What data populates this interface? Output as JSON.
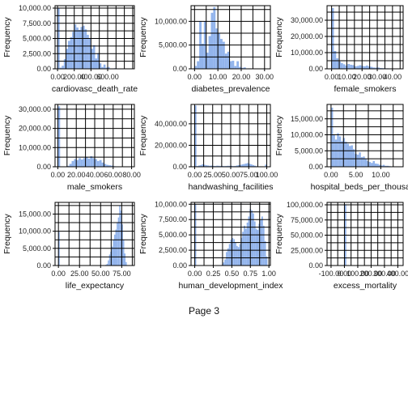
{
  "page": {
    "footer": "Page 3"
  },
  "chart_data": [
    {
      "type": "bar",
      "xlabel": "cardiovasc_death_rate",
      "ylabel": "Frequency",
      "xlim": [
        -30,
        920
      ],
      "ylim": [
        0,
        10400
      ],
      "xticks": [
        0,
        200,
        400,
        600
      ],
      "xtick_labels": [
        "0.00",
        "200.00",
        "400.00",
        "600.00"
      ],
      "yticks": [
        0,
        2500,
        5000,
        7500,
        10000
      ],
      "ytick_labels": [
        "0.00",
        "2,500.00",
        "5,000.00",
        "7,500.00",
        "10,000.00"
      ],
      "bin_start": 0,
      "bin_width": 25,
      "values": [
        10000,
        200,
        500,
        1600,
        3300,
        4600,
        5200,
        6100,
        7300,
        6800,
        6400,
        6900,
        7100,
        6500,
        5600,
        5000,
        3300,
        3900,
        1700,
        2600,
        900,
        300,
        700,
        200,
        300,
        0,
        0,
        100,
        0,
        0,
        0,
        0,
        0,
        0,
        50
      ]
    },
    {
      "type": "bar",
      "xlabel": "diabetes_prevalence",
      "ylabel": "Frequency",
      "xlim": [
        -1.5,
        32.5
      ],
      "ylim": [
        0,
        13300
      ],
      "xticks": [
        0,
        10,
        20,
        30
      ],
      "xtick_labels": [
        "0.00",
        "10.00",
        "20.00",
        "30.00"
      ],
      "yticks": [
        0,
        5000,
        10000
      ],
      "ytick_labels": [
        "0.00",
        "5,000.00",
        "10,000.00"
      ],
      "bin_start": 0,
      "bin_width": 1,
      "values": [
        600,
        1600,
        10000,
        5300,
        10000,
        3400,
        6900,
        11800,
        13000,
        8500,
        7500,
        6300,
        5700,
        3200,
        3600,
        1600,
        1700,
        600,
        1600,
        400,
        200,
        300,
        0,
        100,
        0,
        0,
        0,
        0,
        0,
        50
      ]
    },
    {
      "type": "bar",
      "xlabel": "female_smokers",
      "ylabel": "Frequency",
      "xlim": [
        -3,
        47
      ],
      "ylim": [
        0,
        39000
      ],
      "xticks": [
        0,
        10,
        20,
        30,
        40
      ],
      "xtick_labels": [
        "0.00",
        "10.00",
        "20.00",
        "30.00",
        "40.00"
      ],
      "yticks": [
        0,
        10000,
        20000,
        30000
      ],
      "ytick_labels": [
        "0.00",
        "10,000.00",
        "20,000.00",
        "30,000.00"
      ],
      "bin_start": 0,
      "bin_width": 1.5,
      "values": [
        37500,
        11000,
        6500,
        4500,
        3500,
        2800,
        2000,
        3000,
        2500,
        2300,
        1500,
        1800,
        2200,
        1800,
        1600,
        2000,
        1500,
        1200,
        800,
        700,
        800,
        500,
        400,
        300,
        300,
        200,
        200,
        100,
        100,
        100
      ]
    },
    {
      "type": "bar",
      "xlabel": "male_smokers",
      "ylabel": "Frequency",
      "xlim": [
        -3,
        83
      ],
      "ylim": [
        0,
        32500
      ],
      "xticks": [
        0,
        20,
        40,
        60,
        80
      ],
      "xtick_labels": [
        "0.00",
        "20.00",
        "40.00",
        "60.00",
        "80.00"
      ],
      "yticks": [
        0,
        10000,
        20000,
        30000
      ],
      "ytick_labels": [
        "0.00",
        "10,000.00",
        "20,000.00",
        "30,000.00"
      ],
      "bin_start": 0,
      "bin_width": 2.5,
      "values": [
        31500,
        0,
        0,
        200,
        500,
        1500,
        3000,
        4000,
        3500,
        4500,
        3800,
        4500,
        5000,
        4200,
        5500,
        4500,
        4000,
        3000,
        3500,
        2200,
        1500,
        1000,
        800,
        600,
        300,
        200,
        100,
        100,
        100,
        50
      ]
    },
    {
      "type": "bar",
      "xlabel": "handwashing_facilities",
      "ylabel": "Frequency",
      "xlim": [
        -5,
        105
      ],
      "ylim": [
        0,
        58000
      ],
      "xticks": [
        0,
        25,
        50,
        75,
        100
      ],
      "xtick_labels": [
        "0.00",
        "25.00",
        "50.00",
        "75.00",
        "100.00"
      ],
      "yticks": [
        0,
        20000,
        40000
      ],
      "ytick_labels": [
        "0.00",
        "20,000.00",
        "40,000.00"
      ],
      "bin_start": 0,
      "bin_width": 2.5,
      "values": [
        57000,
        600,
        1200,
        1600,
        2400,
        1800,
        1400,
        1200,
        900,
        1100,
        800,
        700,
        1000,
        900,
        700,
        800,
        600,
        700,
        900,
        800,
        900,
        600,
        700,
        1200,
        1500,
        1800,
        2200,
        2600,
        3000,
        3400,
        2800,
        2200,
        1600,
        1000,
        500,
        200,
        100,
        100,
        0,
        2000
      ]
    },
    {
      "type": "bar",
      "xlabel": "hospital_beds_per_thousand",
      "ylabel": "Frequency",
      "xlim": [
        -0.8,
        14.5
      ],
      "ylim": [
        0,
        19500
      ],
      "xticks": [
        0,
        5,
        10
      ],
      "xtick_labels": [
        "0.00",
        "5.00",
        "10.00"
      ],
      "yticks": [
        0,
        5000,
        10000,
        15000
      ],
      "ytick_labels": [
        "0.00",
        "5,000.00",
        "10,000.00",
        "15,000.00"
      ],
      "bin_start": 0,
      "bin_width": 0.4,
      "values": [
        18500,
        10000,
        8500,
        10500,
        9500,
        8000,
        9000,
        7800,
        7200,
        6500,
        6700,
        5500,
        4000,
        3800,
        4500,
        3000,
        3200,
        2500,
        1800,
        1500,
        1200,
        1800,
        1000,
        900,
        600,
        400,
        600,
        300,
        300,
        200,
        100,
        100,
        100,
        50
      ]
    },
    {
      "type": "bar",
      "xlabel": "life_expectancy",
      "ylabel": "Frequency",
      "xlim": [
        -4,
        90
      ],
      "ylim": [
        0,
        18400
      ],
      "xticks": [
        0,
        25,
        50,
        75
      ],
      "xtick_labels": [
        "0.00",
        "25.00",
        "50.00",
        "75.00"
      ],
      "yticks": [
        0,
        5000,
        10000,
        15000
      ],
      "ytick_labels": [
        "0.00",
        "5,000.00",
        "10,000.00",
        "15,000.00"
      ],
      "bin_start": 0,
      "bin_width": 1.5,
      "values": [
        9800,
        0,
        0,
        0,
        0,
        0,
        0,
        0,
        0,
        0,
        0,
        0,
        0,
        0,
        0,
        0,
        0,
        0,
        0,
        0,
        0,
        0,
        0,
        0,
        0,
        0,
        0,
        0,
        0,
        0,
        0,
        0,
        0,
        0,
        0,
        0,
        0,
        200,
        500,
        1500,
        3200,
        4000,
        5500,
        7500,
        9000,
        10500,
        12500,
        14000,
        17500,
        16000,
        12000,
        7500,
        3500,
        1000
      ]
    },
    {
      "type": "bar",
      "xlabel": "human_development_index",
      "ylabel": "Frequency",
      "xlim": [
        -0.05,
        1.02
      ],
      "ylim": [
        0,
        10300
      ],
      "xticks": [
        0,
        0.25,
        0.5,
        0.75,
        1.0
      ],
      "xtick_labels": [
        "0.00",
        "0.25",
        "0.50",
        "0.75",
        "1.00"
      ],
      "yticks": [
        0,
        2500,
        5000,
        7500,
        10000
      ],
      "ytick_labels": [
        "0.00",
        "2,500.00",
        "5,000.00",
        "7,500.00",
        "10,000.00"
      ],
      "bin_start": 0,
      "bin_width": 0.02,
      "values": [
        10000,
        0,
        0,
        0,
        0,
        0,
        0,
        0,
        0,
        0,
        0,
        0,
        0,
        0,
        0,
        0,
        0,
        0,
        100,
        500,
        1000,
        2200,
        2800,
        3500,
        4200,
        4500,
        4300,
        3800,
        3200,
        3000,
        3500,
        4500,
        5500,
        6500,
        6000,
        7000,
        8000,
        9200,
        9000,
        8500,
        7200,
        6000,
        5800,
        6800,
        7500,
        8000,
        6500,
        4000,
        1500
      ]
    },
    {
      "type": "bar",
      "xlabel": "excess_mortality",
      "ylabel": "Frequency",
      "xlim": [
        -130,
        440
      ],
      "ylim": [
        0,
        104000
      ],
      "xticks": [
        -100,
        0,
        100,
        200,
        300,
        400
      ],
      "xtick_labels": [
        "-100.00",
        "0.00",
        "100.00",
        "200.00",
        "300.00",
        "400.00"
      ],
      "yticks": [
        0,
        25000,
        50000,
        75000,
        100000
      ],
      "ytick_labels": [
        "0.00",
        "25,000.00",
        "50,000.00",
        "75,000.00",
        "100,000.00"
      ],
      "bin_start": -10,
      "bin_width": 12,
      "values": [
        200,
        101000,
        300,
        100,
        50
      ]
    }
  ]
}
